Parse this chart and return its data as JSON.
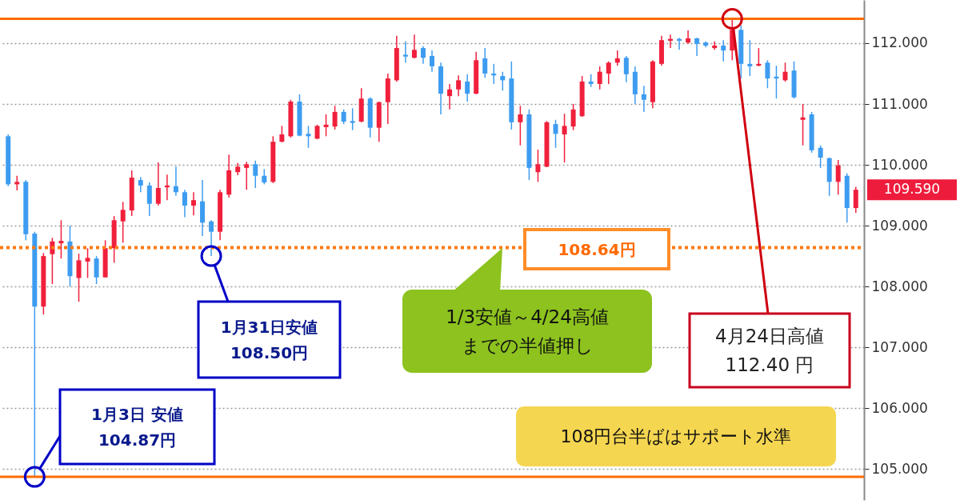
{
  "chart_data": {
    "type": "candlestick",
    "categories": [
      null,
      null,
      null,
      null,
      null,
      null,
      null,
      null,
      null,
      null,
      null,
      null,
      null,
      null,
      null,
      null,
      null,
      null,
      null,
      null,
      null,
      null,
      null,
      null,
      null,
      null,
      null,
      null,
      null,
      null,
      null,
      null,
      null,
      null,
      null,
      null,
      null,
      null,
      null,
      null,
      null,
      null,
      null,
      null,
      null,
      null,
      null,
      null,
      null,
      null,
      null,
      null,
      null,
      null,
      null,
      null,
      null,
      null,
      null,
      null,
      null,
      null,
      null,
      null,
      null,
      null,
      null,
      null,
      null,
      null,
      null,
      null,
      null,
      null,
      null,
      null,
      null,
      null,
      null,
      null,
      null,
      null,
      null,
      null,
      null,
      null,
      null,
      null,
      null,
      null,
      null,
      null,
      null,
      null,
      null,
      null,
      null
    ],
    "ohlc": [
      [
        110.47,
        110.5,
        109.65,
        109.68
      ],
      [
        109.68,
        109.82,
        109.58,
        109.72
      ],
      [
        109.72,
        109.75,
        108.76,
        108.86
      ],
      [
        108.87,
        108.9,
        104.87,
        107.67
      ],
      [
        107.67,
        108.55,
        107.54,
        108.5
      ],
      [
        108.53,
        108.8,
        108.04,
        108.74
      ],
      [
        108.71,
        109.09,
        108.46,
        108.75
      ],
      [
        108.74,
        109.0,
        108.0,
        108.17
      ],
      [
        108.14,
        108.54,
        107.75,
        108.43
      ],
      [
        108.41,
        108.63,
        108.14,
        108.47
      ],
      [
        108.46,
        108.5,
        108.04,
        108.15
      ],
      [
        108.15,
        108.76,
        108.15,
        108.63
      ],
      [
        108.63,
        109.16,
        108.39,
        109.09
      ],
      [
        109.07,
        109.39,
        108.72,
        109.26
      ],
      [
        109.25,
        109.91,
        109.16,
        109.79
      ],
      [
        109.75,
        109.8,
        109.55,
        109.66
      ],
      [
        109.66,
        109.71,
        109.16,
        109.36
      ],
      [
        109.36,
        110.04,
        109.33,
        109.62
      ],
      [
        109.63,
        109.84,
        109.42,
        109.66
      ],
      [
        109.65,
        109.97,
        109.49,
        109.55
      ],
      [
        109.55,
        109.59,
        109.14,
        109.33
      ],
      [
        109.33,
        109.55,
        109.17,
        109.42
      ],
      [
        109.4,
        109.75,
        108.83,
        109.05
      ],
      [
        109.07,
        109.09,
        108.5,
        108.9
      ],
      [
        108.9,
        109.59,
        108.76,
        109.55
      ],
      [
        109.51,
        110.17,
        109.46,
        109.91
      ],
      [
        109.88,
        110.03,
        109.83,
        109.97
      ],
      [
        109.95,
        110.05,
        109.59,
        110.01
      ],
      [
        110.01,
        110.07,
        109.62,
        109.82
      ],
      [
        109.82,
        109.93,
        109.68,
        109.71
      ],
      [
        109.72,
        110.47,
        109.7,
        110.38
      ],
      [
        110.38,
        110.64,
        110.37,
        110.5
      ],
      [
        110.47,
        111.07,
        110.45,
        111.04
      ],
      [
        111.04,
        111.16,
        110.47,
        110.48
      ],
      [
        110.51,
        110.64,
        110.28,
        110.47
      ],
      [
        110.43,
        110.66,
        110.42,
        110.64
      ],
      [
        110.62,
        110.83,
        110.47,
        110.66
      ],
      [
        110.63,
        110.97,
        110.58,
        110.87
      ],
      [
        110.87,
        110.91,
        110.67,
        110.71
      ],
      [
        110.72,
        110.93,
        110.57,
        110.69
      ],
      [
        110.71,
        111.26,
        110.7,
        111.09
      ],
      [
        111.09,
        111.11,
        110.45,
        110.61
      ],
      [
        110.61,
        111.04,
        110.38,
        111.03
      ],
      [
        111.03,
        111.5,
        110.67,
        111.42
      ],
      [
        111.39,
        112.12,
        111.37,
        111.92
      ],
      [
        111.81,
        112.03,
        111.68,
        111.78
      ],
      [
        111.76,
        112.14,
        111.75,
        111.89
      ],
      [
        111.92,
        111.95,
        111.66,
        111.76
      ],
      [
        111.79,
        111.88,
        111.53,
        111.62
      ],
      [
        111.62,
        111.68,
        110.83,
        111.17
      ],
      [
        111.13,
        111.33,
        110.91,
        111.24
      ],
      [
        111.24,
        111.47,
        111.13,
        111.39
      ],
      [
        111.37,
        111.49,
        111.04,
        111.17
      ],
      [
        111.17,
        111.86,
        111.16,
        111.72
      ],
      [
        111.75,
        111.92,
        111.43,
        111.5
      ],
      [
        111.5,
        111.66,
        111.33,
        111.47
      ],
      [
        111.46,
        111.53,
        111.22,
        111.39
      ],
      [
        111.42,
        111.7,
        110.58,
        110.7
      ],
      [
        110.7,
        110.97,
        110.32,
        110.83
      ],
      [
        110.83,
        110.91,
        109.75,
        109.95
      ],
      [
        109.88,
        110.25,
        109.72,
        110.01
      ],
      [
        109.97,
        110.72,
        109.96,
        110.7
      ],
      [
        110.67,
        110.74,
        110.28,
        110.51
      ],
      [
        110.5,
        110.84,
        110.04,
        110.64
      ],
      [
        110.63,
        111.0,
        110.57,
        110.91
      ],
      [
        110.8,
        111.46,
        110.79,
        111.37
      ],
      [
        111.37,
        111.49,
        111.28,
        111.33
      ],
      [
        111.33,
        111.62,
        111.24,
        111.53
      ],
      [
        111.5,
        111.7,
        111.33,
        111.68
      ],
      [
        111.68,
        111.88,
        111.63,
        111.75
      ],
      [
        111.76,
        111.79,
        111.36,
        111.49
      ],
      [
        111.53,
        111.62,
        111.0,
        111.16
      ],
      [
        111.16,
        111.3,
        110.87,
        111.07
      ],
      [
        111.03,
        111.72,
        110.93,
        111.7
      ],
      [
        111.66,
        112.12,
        111.63,
        112.05
      ],
      [
        112.04,
        112.14,
        111.92,
        112.07
      ],
      [
        112.07,
        112.09,
        111.89,
        112.04
      ],
      [
        112.01,
        112.21,
        111.99,
        112.08
      ],
      [
        112.08,
        112.09,
        111.79,
        111.99
      ],
      [
        112.01,
        112.03,
        111.93,
        111.96
      ],
      [
        111.92,
        112.03,
        111.89,
        111.96
      ],
      [
        111.96,
        112.05,
        111.7,
        111.88
      ],
      [
        111.88,
        112.4,
        111.72,
        112.22
      ],
      [
        112.22,
        112.29,
        111.42,
        111.66
      ],
      [
        111.66,
        112.05,
        111.46,
        111.62
      ],
      [
        111.63,
        111.92,
        111.62,
        111.66
      ],
      [
        111.68,
        111.72,
        111.26,
        111.42
      ],
      [
        111.45,
        111.63,
        111.09,
        111.42
      ],
      [
        111.39,
        111.68,
        111.37,
        111.53
      ],
      [
        111.55,
        111.7,
        111.09,
        111.11
      ],
      [
        110.74,
        111.0,
        110.32,
        110.78
      ],
      [
        110.83,
        110.87,
        110.2,
        110.24
      ],
      [
        110.28,
        110.32,
        109.95,
        110.12
      ],
      [
        110.11,
        110.12,
        109.49,
        109.72
      ],
      [
        109.72,
        110.08,
        109.51,
        109.99
      ],
      [
        109.82,
        109.86,
        109.05,
        109.29
      ],
      [
        109.29,
        109.64,
        109.21,
        109.59
      ]
    ],
    "colors": [
      "#3d9cf0",
      "#f0203c",
      "#3d9cf0",
      "#3d9cf0",
      "#f0203c",
      "#f0203c",
      "#f0203c",
      "#3d9cf0",
      "#f0203c",
      "#f0203c",
      "#3d9cf0",
      "#f0203c",
      "#f0203c",
      "#f0203c",
      "#f0203c",
      "#3d9cf0",
      "#3d9cf0",
      "#f0203c",
      "#f0203c",
      "#3d9cf0",
      "#3d9cf0",
      "#f0203c",
      "#3d9cf0",
      "#3d9cf0",
      "#f0203c",
      "#f0203c",
      "#f0203c",
      "#f0203c",
      "#3d9cf0",
      "#3d9cf0",
      "#f0203c",
      "#f0203c",
      "#f0203c",
      "#3d9cf0",
      "#3d9cf0",
      "#f0203c",
      "#f0203c",
      "#f0203c",
      "#3d9cf0",
      "#3d9cf0",
      "#f0203c",
      "#3d9cf0",
      "#f0203c",
      "#f0203c",
      "#f0203c",
      "#3d9cf0",
      "#f0203c",
      "#3d9cf0",
      "#3d9cf0",
      "#3d9cf0",
      "#f0203c",
      "#f0203c",
      "#3d9cf0",
      "#f0203c",
      "#3d9cf0",
      "#3d9cf0",
      "#3d9cf0",
      "#3d9cf0",
      "#f0203c",
      "#3d9cf0",
      "#f0203c",
      "#f0203c",
      "#3d9cf0",
      "#f0203c",
      "#f0203c",
      "#f0203c",
      "#3d9cf0",
      "#f0203c",
      "#f0203c",
      "#f0203c",
      "#3d9cf0",
      "#3d9cf0",
      "#3d9cf0",
      "#f0203c",
      "#f0203c",
      "#f0203c",
      "#3d9cf0",
      "#f0203c",
      "#3d9cf0",
      "#3d9cf0",
      "#f0203c",
      "#3d9cf0",
      "#f0203c",
      "#3d9cf0",
      "#3d9cf0",
      "#f0203c",
      "#3d9cf0",
      "#3d9cf0",
      "#f0203c",
      "#3d9cf0",
      "#f0203c",
      "#3d9cf0",
      "#3d9cf0",
      "#3d9cf0",
      "#f0203c",
      "#3d9cf0",
      "#f0203c"
    ],
    "ylim": [
      104.49,
      112.71
    ],
    "yticks": [
      {
        "value": 105,
        "label": "105.000"
      },
      {
        "value": 106,
        "label": "106.000"
      },
      {
        "value": 107,
        "label": "107.000"
      },
      {
        "value": 108,
        "label": "108.000"
      },
      {
        "value": 109,
        "label": "109.000"
      },
      {
        "value": 110,
        "label": "110.000"
      },
      {
        "value": 111,
        "label": "111.000"
      },
      {
        "value": 112,
        "label": "112.000"
      }
    ],
    "grid": "y",
    "ref_lines": [
      {
        "axis": "y",
        "value": 112.4,
        "color": "#ff6a00",
        "line_style": "solid"
      },
      {
        "axis": "y",
        "value": 104.87,
        "color": "#ff6a00",
        "line_style": "solid"
      },
      {
        "axis": "y",
        "value": 108.64,
        "label": "108.64円",
        "color": "#ff7a10",
        "line_style": "dotted"
      }
    ],
    "annotations": [
      "4月24日高値\n112.40 円",
      "1月31日安値\n108.50円",
      "1月3日 安値\n104.87円",
      "1/3安値～4/24高値までの半値押し",
      "108円台半ばはサポート水準",
      "109.590"
    ]
  }
}
